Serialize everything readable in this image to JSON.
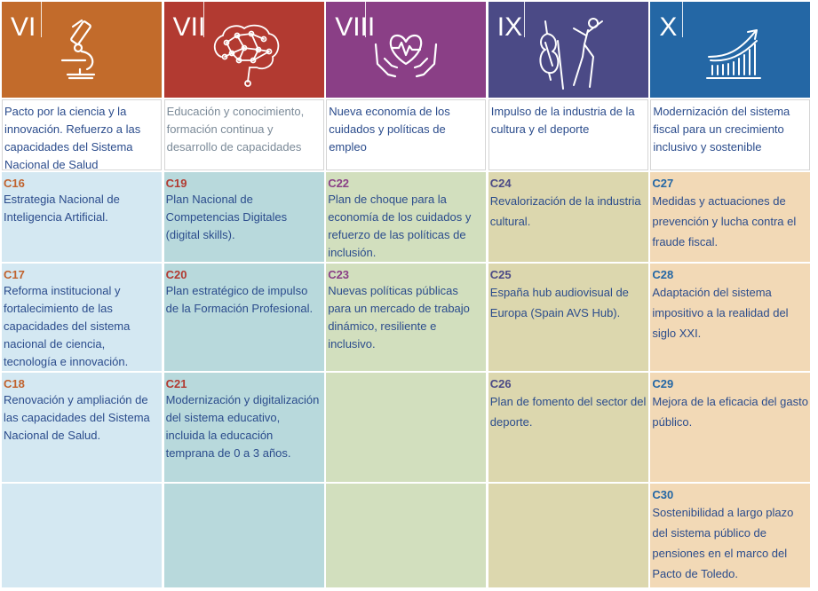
{
  "columns": [
    {
      "roman": "VI",
      "icon": "microscope-icon",
      "header_color": "#c26b2b",
      "description": "Pacto por la ciencia y la innovación. Refuerzo a las capacidades del Sistema Nacional de Salud",
      "description_color": "#2b4c8c",
      "code_color": "#c0622d",
      "cell_color": "#d4e8f2",
      "components": [
        {
          "code": "C16",
          "title": "Estrategia Nacional de Inteligencia Artificial."
        },
        {
          "code": "C17",
          "title": "Reforma institucional y fortalecimiento de las capacidades del sistema nacional de ciencia, tecnología e innovación."
        },
        {
          "code": "C18",
          "title": "Renovación y ampliación de las capacidades del Sistema Nacional de Salud."
        }
      ]
    },
    {
      "roman": "VII",
      "icon": "brain-network-icon",
      "header_color": "#b23a31",
      "description": "Educación y conocimiento, formación continua y desarrollo de capacidades",
      "description_color": "#7b8a98",
      "code_color": "#b23a31",
      "cell_color": "#b8d9dc",
      "components": [
        {
          "code": "C19",
          "title": "Plan Nacional de Competencias Digitales (digital skills)."
        },
        {
          "code": "C20",
          "title": "Plan estratégico de impulso de la Formación Profesional."
        },
        {
          "code": "C21",
          "title": "Modernización y digitalización del sistema educativo, incluida la educación temprana de 0 a 3 años."
        }
      ]
    },
    {
      "roman": "VIII",
      "icon": "hands-heart-icon",
      "header_color": "#8a3f86",
      "description": "Nueva economía de los cuidados y políticas de empleo",
      "description_color": "#2b4c8c",
      "code_color": "#8a3f86",
      "cell_color": "#d2dfbe",
      "components": [
        {
          "code": "C22",
          "title": "Plan de choque para la economía de los cuidados y refuerzo de las políticas de inclusión."
        },
        {
          "code": "C23",
          "title": "Nuevas políticas públicas para un mercado de trabajo dinámico, resiliente e inclusivo."
        }
      ]
    },
    {
      "roman": "IX",
      "icon": "violin-dancer-icon",
      "header_color": "#4b4a86",
      "description": "Impulso de la industria de la cultura y el deporte",
      "description_color": "#2b4c8c",
      "code_color": "#4b4a86",
      "cell_color": "#dcd7ae",
      "components": [
        {
          "code": "C24",
          "title": "Revalorización de la industria cultural."
        },
        {
          "code": "C25",
          "title": "España hub audiovisual de Europa (Spain AVS Hub)."
        },
        {
          "code": "C26",
          "title": "Plan de fomento del sector del deporte."
        }
      ]
    },
    {
      "roman": "X",
      "icon": "growth-chart-icon",
      "header_color": "#2467a5",
      "description": "Modernización del sistema fiscal para un crecimiento inclusivo y sostenible",
      "description_color": "#2b4c8c",
      "code_color": "#2467a5",
      "cell_color": "#f2d9b6",
      "components": [
        {
          "code": "C27",
          "title": "Medidas y actuaciones de prevención y lucha contra el fraude fiscal."
        },
        {
          "code": "C28",
          "title": "Adaptación del sistema impositivo a la realidad del siglo XXI."
        },
        {
          "code": "C29",
          "title": "Mejora de la eficacia del gasto público."
        },
        {
          "code": "C30",
          "title": "Sostenibilidad a largo plazo del sistema público de pensiones en el marco del Pacto de Toledo."
        }
      ]
    }
  ]
}
